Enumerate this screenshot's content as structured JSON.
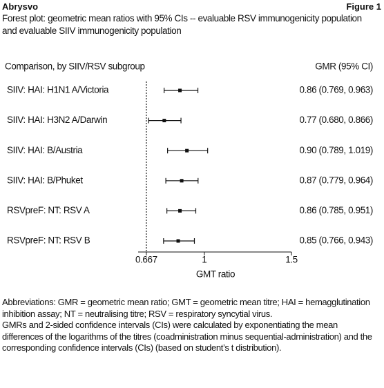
{
  "header": {
    "product": "Abrysvo",
    "figure": "Figure 1"
  },
  "chart_data": {
    "type": "forest",
    "title": "Forest plot: geometric mean ratios with 95% CIs -- evaluable RSV immunogenicity population and evaluable SIIV immunogenicity population",
    "row_header": "Comparison, by SIIV/RSV subgroup",
    "value_header": "GMR (95% CI)",
    "x_label": "GMT ratio",
    "categories": [
      "SIIV: HAI: H1N1 A/Victoria",
      "SIIV: HAI: H3N2 A/Darwin",
      "SIIV: HAI: B/Austria",
      "SIIV: HAI: B/Phuket",
      "RSVpreF: NT: RSV A",
      "RSVpreF: NT: RSV B"
    ],
    "values": [
      0.86,
      0.77,
      0.9,
      0.87,
      0.86,
      0.85
    ],
    "lower": [
      0.769,
      0.68,
      0.789,
      0.779,
      0.785,
      0.766
    ],
    "upper": [
      0.963,
      0.866,
      1.019,
      0.964,
      0.951,
      0.943
    ],
    "value_labels": [
      "0.86 (0.769, 0.963)",
      "0.77 (0.680, 0.866)",
      "0.90 (0.789, 1.019)",
      "0.87 (0.779, 0.964)",
      "0.86 (0.785, 0.951)",
      "0.85 (0.766, 0.943)"
    ],
    "xlim": [
      0.62,
      1.5
    ],
    "xticks": [
      0.667,
      1,
      1.5
    ],
    "reference_line": 0.667,
    "color": "#111111"
  },
  "notes": [
    "Abbreviations: GMR = geometric mean ratio; GMT = geometric mean titre; HAI = hemagglutination inhibition assay; NT = neutralising titre; RSV = respiratory syncytial virus.",
    "GMRs and 2-sided confidence intervals (CIs) were calculated by exponentiating the mean differences of the logarithms of the titres (coadministration minus sequential-administration) and the corresponding confidence intervals (CIs) (based on student’s t distribution)."
  ]
}
